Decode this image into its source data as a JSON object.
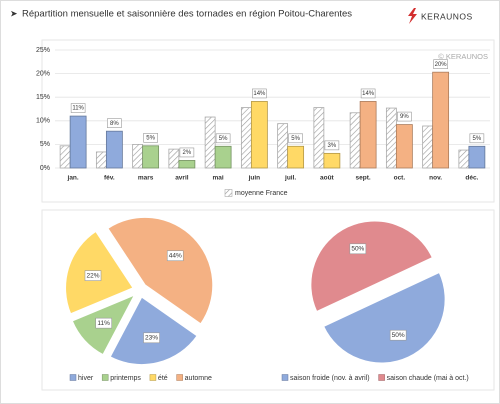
{
  "header": {
    "title": "Répartition mensuelle et saisonnière des tornades en région Poitou-Charentes",
    "brand": "KERAUNOS"
  },
  "chart_data": [
    {
      "type": "bar",
      "annotation": "© KERAUNOS",
      "categories": [
        "jan.",
        "fév.",
        "mars",
        "avril",
        "mai",
        "juin",
        "juil.",
        "août",
        "sept.",
        "oct.",
        "nov.",
        "déc."
      ],
      "ylim": [
        0,
        25
      ],
      "yticks": [
        {
          "value": 0,
          "label": "0%"
        },
        {
          "value": 5,
          "label": "5%"
        },
        {
          "value": 10,
          "label": "10%"
        },
        {
          "value": 15,
          "label": "15%"
        },
        {
          "value": 20,
          "label": "20%"
        },
        {
          "value": 25,
          "label": "25%"
        }
      ],
      "grid": true,
      "series": [
        {
          "name": "moyenne France",
          "color": "#bfbfbf",
          "pattern": "hatch",
          "values": [
            4.7,
            3.4,
            5,
            4,
            10.8,
            12.8,
            9.4,
            12.8,
            11.7,
            12.7,
            8.9,
            3.8
          ]
        },
        {
          "colors": [
            "#8faadc",
            "#8faadc",
            "#a9d18e",
            "#a9d18e",
            "#a9d18e",
            "#ffd966",
            "#ffd966",
            "#ffd966",
            "#f4b183",
            "#f4b183",
            "#f4b183",
            "#8faadc"
          ],
          "values": [
            11,
            7.8,
            4.7,
            1.6,
            4.6,
            14.1,
            4.6,
            3.1,
            14.1,
            9.2,
            20.3,
            4.6
          ],
          "value_labels": [
            "11%",
            "8%",
            "5%",
            "2%",
            "5%",
            "14%",
            "5%",
            "3%",
            "14%",
            "9%",
            "20%",
            "5%"
          ]
        }
      ]
    },
    {
      "type": "pie",
      "categories": [
        "hiver",
        "printemps",
        "été",
        "automne"
      ],
      "values": [
        23,
        11,
        22,
        44
      ],
      "value_labels": [
        "23%",
        "11%",
        "22%",
        "44%"
      ],
      "colors": [
        "#8faadc",
        "#a9d18e",
        "#ffd966",
        "#f4b183"
      ]
    },
    {
      "type": "pie",
      "categories": [
        "saison froide (nov. à avril)",
        "saison chaude (mai à oct.)"
      ],
      "values": [
        50,
        50
      ],
      "value_labels": [
        "50%",
        "50%"
      ],
      "colors": [
        "#8faadc",
        "#e08a8e"
      ]
    }
  ]
}
